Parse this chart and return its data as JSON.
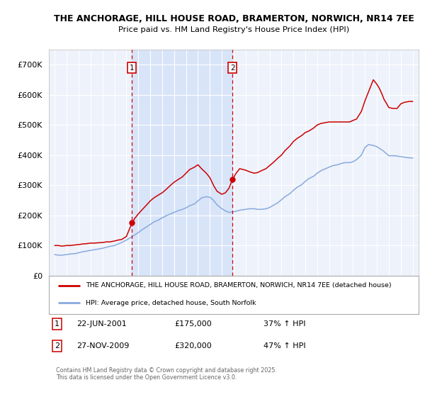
{
  "title_line1": "THE ANCHORAGE, HILL HOUSE ROAD, BRAMERTON, NORWICH, NR14 7EE",
  "title_line2": "Price paid vs. HM Land Registry's House Price Index (HPI)",
  "ylim": [
    0,
    750000
  ],
  "yticks": [
    0,
    100000,
    200000,
    300000,
    400000,
    500000,
    600000,
    700000
  ],
  "ytick_labels": [
    "£0",
    "£100K",
    "£200K",
    "£300K",
    "£400K",
    "£500K",
    "£600K",
    "£700K"
  ],
  "background_color": "#ffffff",
  "plot_bg_color": "#eef2fb",
  "grid_color": "#ffffff",
  "red_line_color": "#cc0000",
  "blue_line_color": "#88aadd",
  "vline_color": "#cc0000",
  "annotation_box_color": "#ffffff",
  "annotation_box_edge": "#cc0000",
  "shade_color": "#d8e4f8",
  "legend_label_red": "THE ANCHORAGE, HILL HOUSE ROAD, BRAMERTON, NORWICH, NR14 7EE (detached house)",
  "legend_label_blue": "HPI: Average price, detached house, South Norfolk",
  "event1_date_label": "22-JUN-2001",
  "event1_price_label": "£175,000",
  "event1_pct_label": "37% ↑ HPI",
  "event2_date_label": "27-NOV-2009",
  "event2_price_label": "£320,000",
  "event2_pct_label": "47% ↑ HPI",
  "copyright_text": "Contains HM Land Registry data © Crown copyright and database right 2025.\nThis data is licensed under the Open Government Licence v3.0.",
  "event1_x": 2001.47,
  "event2_x": 2009.9,
  "event1_y": 175000,
  "event2_y": 320000,
  "xmin": 1994.5,
  "xmax": 2025.5,
  "red_x": [
    1995.0,
    1995.3,
    1995.6,
    1996.0,
    1996.3,
    1996.7,
    1997.0,
    1997.3,
    1997.6,
    1998.0,
    1998.3,
    1998.6,
    1999.0,
    1999.3,
    1999.6,
    2000.0,
    2000.3,
    2000.6,
    2001.0,
    2001.47,
    2001.7,
    2002.0,
    2002.3,
    2002.7,
    2003.0,
    2003.3,
    2003.7,
    2004.0,
    2004.3,
    2004.7,
    2005.0,
    2005.3,
    2005.7,
    2006.0,
    2006.3,
    2006.7,
    2007.0,
    2007.3,
    2007.7,
    2008.0,
    2008.3,
    2008.6,
    2009.0,
    2009.3,
    2009.6,
    2009.9,
    2010.2,
    2010.5,
    2011.0,
    2011.3,
    2011.7,
    2012.0,
    2012.3,
    2012.7,
    2013.0,
    2013.3,
    2013.7,
    2014.0,
    2014.3,
    2014.7,
    2015.0,
    2015.3,
    2015.7,
    2016.0,
    2016.3,
    2016.7,
    2017.0,
    2017.3,
    2017.7,
    2018.0,
    2018.3,
    2018.7,
    2019.0,
    2019.3,
    2019.7,
    2020.0,
    2020.3,
    2020.7,
    2021.0,
    2021.3,
    2021.7,
    2022.0,
    2022.2,
    2022.4,
    2022.6,
    2022.8,
    2023.0,
    2023.3,
    2023.7,
    2024.0,
    2024.3,
    2024.7,
    2025.0
  ],
  "red_y": [
    100000,
    100000,
    98000,
    100000,
    100000,
    102000,
    103000,
    105000,
    106000,
    108000,
    108000,
    109000,
    110000,
    112000,
    112000,
    115000,
    118000,
    120000,
    130000,
    175000,
    190000,
    205000,
    218000,
    235000,
    248000,
    258000,
    268000,
    275000,
    285000,
    300000,
    310000,
    318000,
    328000,
    340000,
    352000,
    360000,
    368000,
    355000,
    340000,
    325000,
    300000,
    280000,
    270000,
    275000,
    290000,
    320000,
    340000,
    355000,
    350000,
    345000,
    340000,
    342000,
    348000,
    355000,
    365000,
    375000,
    390000,
    400000,
    415000,
    430000,
    445000,
    455000,
    465000,
    475000,
    480000,
    490000,
    500000,
    505000,
    508000,
    510000,
    510000,
    510000,
    510000,
    510000,
    510000,
    515000,
    520000,
    545000,
    580000,
    610000,
    650000,
    635000,
    622000,
    605000,
    585000,
    572000,
    558000,
    555000,
    555000,
    570000,
    575000,
    578000,
    578000
  ],
  "blue_x": [
    1995.0,
    1995.3,
    1995.6,
    1996.0,
    1996.3,
    1996.7,
    1997.0,
    1997.3,
    1997.6,
    1998.0,
    1998.3,
    1998.6,
    1999.0,
    1999.3,
    1999.6,
    2000.0,
    2000.3,
    2000.6,
    2001.0,
    2001.5,
    2002.0,
    2002.3,
    2002.7,
    2003.0,
    2003.3,
    2003.7,
    2004.0,
    2004.3,
    2004.7,
    2005.0,
    2005.3,
    2005.7,
    2006.0,
    2006.3,
    2006.7,
    2007.0,
    2007.3,
    2007.7,
    2008.0,
    2008.3,
    2008.6,
    2009.0,
    2009.3,
    2009.6,
    2010.0,
    2010.3,
    2010.6,
    2011.0,
    2011.3,
    2011.7,
    2012.0,
    2012.3,
    2012.7,
    2013.0,
    2013.3,
    2013.7,
    2014.0,
    2014.3,
    2014.7,
    2015.0,
    2015.3,
    2015.7,
    2016.0,
    2016.3,
    2016.7,
    2017.0,
    2017.3,
    2017.7,
    2018.0,
    2018.3,
    2018.7,
    2019.0,
    2019.3,
    2019.7,
    2020.0,
    2020.3,
    2020.7,
    2021.0,
    2021.3,
    2021.7,
    2022.0,
    2022.5,
    2023.0,
    2023.5,
    2024.0,
    2024.5,
    2025.0
  ],
  "blue_y": [
    70000,
    68000,
    68000,
    70000,
    72000,
    73000,
    76000,
    79000,
    81000,
    84000,
    86000,
    88000,
    91000,
    94000,
    97000,
    100000,
    105000,
    110000,
    118000,
    130000,
    143000,
    152000,
    162000,
    170000,
    178000,
    185000,
    192000,
    198000,
    205000,
    210000,
    215000,
    220000,
    225000,
    232000,
    238000,
    248000,
    258000,
    262000,
    260000,
    250000,
    235000,
    222000,
    215000,
    210000,
    212000,
    215000,
    218000,
    220000,
    222000,
    222000,
    220000,
    220000,
    222000,
    226000,
    233000,
    242000,
    252000,
    262000,
    272000,
    283000,
    293000,
    302000,
    313000,
    322000,
    330000,
    340000,
    348000,
    355000,
    360000,
    365000,
    368000,
    372000,
    375000,
    375000,
    378000,
    385000,
    400000,
    425000,
    435000,
    432000,
    428000,
    415000,
    398000,
    398000,
    395000,
    392000,
    390000
  ]
}
